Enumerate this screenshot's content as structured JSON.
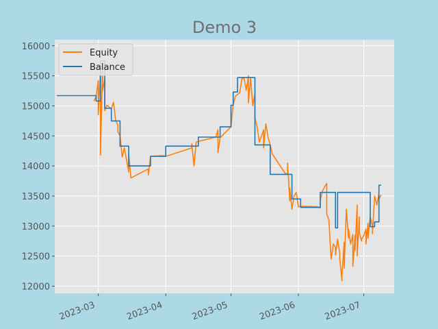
{
  "chart_data": {
    "type": "line",
    "title": "Demo 3",
    "xlabel": "",
    "ylabel": "",
    "x_range": [
      "2023-02-09",
      "2023-07-15"
    ],
    "ylim": [
      11880,
      16100
    ],
    "x_ticks": [
      "2023-03",
      "2023-04",
      "2023-05",
      "2023-06",
      "2023-07"
    ],
    "x_tick_dates": [
      "2023-03-01",
      "2023-04-01",
      "2023-05-01",
      "2023-06-01",
      "2023-07-01"
    ],
    "y_ticks": [
      12000,
      12500,
      13000,
      13500,
      14000,
      14500,
      15000,
      15500,
      16000
    ],
    "grid": true,
    "legend": "top-left",
    "series": [
      {
        "name": "Equity",
        "color": "#ff7f0e",
        "x": [
          "2023-02-27",
          "2023-02-28",
          "2023-03-01",
          "2023-03-01",
          "2023-03-02",
          "2023-03-02",
          "2023-03-03",
          "2023-03-03",
          "2023-03-04",
          "2023-03-04",
          "2023-03-05",
          "2023-03-07",
          "2023-03-08",
          "2023-03-09",
          "2023-03-10",
          "2023-03-10",
          "2023-03-11",
          "2023-03-12",
          "2023-03-13",
          "2023-03-14",
          "2023-03-15",
          "2023-03-15",
          "2023-03-16",
          "2023-03-24",
          "2023-03-24",
          "2023-03-25",
          "2023-03-25",
          "2023-03-31",
          "2023-04-01",
          "2023-04-13",
          "2023-04-13",
          "2023-04-14",
          "2023-04-15",
          "2023-04-24",
          "2023-04-25",
          "2023-04-25",
          "2023-04-26",
          "2023-05-01",
          "2023-05-02",
          "2023-05-03",
          "2023-05-05",
          "2023-05-06",
          "2023-05-07",
          "2023-05-08",
          "2023-05-09",
          "2023-05-09",
          "2023-05-10",
          "2023-05-11",
          "2023-05-12",
          "2023-05-12",
          "2023-05-13",
          "2023-05-14",
          "2023-05-15",
          "2023-05-16",
          "2023-05-16",
          "2023-05-17",
          "2023-05-18",
          "2023-05-19",
          "2023-05-20",
          "2023-05-26",
          "2023-05-27",
          "2023-05-27",
          "2023-05-28",
          "2023-05-28",
          "2023-05-29",
          "2023-05-30",
          "2023-05-31",
          "2023-06-01",
          "2023-06-02",
          "2023-06-10",
          "2023-06-11",
          "2023-06-11",
          "2023-06-12",
          "2023-06-13",
          "2023-06-14",
          "2023-06-14",
          "2023-06-15",
          "2023-06-16",
          "2023-06-17",
          "2023-06-18",
          "2023-06-18",
          "2023-06-19",
          "2023-06-20",
          "2023-06-20",
          "2023-06-21",
          "2023-06-21",
          "2023-06-22",
          "2023-06-22",
          "2023-06-23",
          "2023-06-24",
          "2023-06-24",
          "2023-06-25",
          "2023-06-26",
          "2023-06-26",
          "2023-06-27",
          "2023-06-27",
          "2023-06-28",
          "2023-06-28",
          "2023-06-29",
          "2023-06-29",
          "2023-06-30",
          "2023-06-30",
          "2023-07-01",
          "2023-07-02",
          "2023-07-02",
          "2023-07-03",
          "2023-07-03",
          "2023-07-04",
          "2023-07-05",
          "2023-07-05",
          "2023-07-06",
          "2023-07-07",
          "2023-07-08",
          "2023-07-08",
          "2023-07-09"
        ],
        "values": [
          15080,
          15150,
          15420,
          14850,
          15600,
          14180,
          15650,
          15250,
          15450,
          14920,
          15010,
          14950,
          15060,
          14760,
          14680,
          14570,
          14500,
          14150,
          14300,
          14100,
          13900,
          14200,
          13800,
          13950,
          13850,
          14150,
          14160,
          14170,
          14160,
          14300,
          14370,
          14000,
          14400,
          14480,
          14600,
          14220,
          14470,
          14650,
          15020,
          15160,
          15220,
          15450,
          15460,
          15260,
          15500,
          15050,
          15460,
          15000,
          15200,
          14800,
          14650,
          14400,
          14500,
          14600,
          14300,
          14700,
          14480,
          14350,
          14200,
          13870,
          13880,
          14050,
          13420,
          13630,
          13280,
          13500,
          13560,
          13320,
          13330,
          13320,
          13300,
          13420,
          13580,
          13650,
          13710,
          13200,
          13100,
          12450,
          12700,
          12650,
          12520,
          12780,
          12550,
          12450,
          12090,
          12200,
          12730,
          12300,
          13280,
          12800,
          12950,
          12700,
          12860,
          12330,
          12850,
          12600,
          13350,
          12500,
          13150,
          12900,
          12750,
          12780,
          12840,
          12950,
          12700,
          13050,
          12800,
          13150,
          13000,
          12870,
          13500,
          13350,
          13540,
          13450,
          13520
        ]
      },
      {
        "name": "Balance",
        "color": "#1f77b4",
        "x": [
          "2023-02-10",
          "2023-02-28",
          "2023-02-28",
          "2023-03-02",
          "2023-03-02",
          "2023-03-04",
          "2023-03-04",
          "2023-03-07",
          "2023-03-07",
          "2023-03-11",
          "2023-03-11",
          "2023-03-15",
          "2023-03-15",
          "2023-03-25",
          "2023-03-25",
          "2023-04-01",
          "2023-04-01",
          "2023-04-16",
          "2023-04-16",
          "2023-04-26",
          "2023-04-26",
          "2023-05-01",
          "2023-05-01",
          "2023-05-02",
          "2023-05-02",
          "2023-05-04",
          "2023-05-04",
          "2023-05-12",
          "2023-05-12",
          "2023-05-19",
          "2023-05-19",
          "2023-05-29",
          "2023-05-29",
          "2023-06-02",
          "2023-06-02",
          "2023-06-11",
          "2023-06-11",
          "2023-06-18",
          "2023-06-18",
          "2023-06-19",
          "2023-06-19",
          "2023-07-04",
          "2023-07-04",
          "2023-07-06",
          "2023-07-06",
          "2023-07-08",
          "2023-07-08",
          "2023-07-09"
        ],
        "values": [
          15170,
          15170,
          15080,
          15080,
          15750,
          15750,
          14960,
          14960,
          14750,
          14750,
          14330,
          14330,
          14000,
          14000,
          14160,
          14160,
          14330,
          14330,
          14480,
          14480,
          14650,
          14650,
          15010,
          15010,
          15230,
          15230,
          15470,
          15470,
          14350,
          14350,
          13860,
          13860,
          13450,
          13450,
          13310,
          13310,
          13560,
          13560,
          12970,
          12970,
          13560,
          13560,
          12990,
          12990,
          13070,
          13070,
          13680,
          13680
        ]
      }
    ]
  }
}
